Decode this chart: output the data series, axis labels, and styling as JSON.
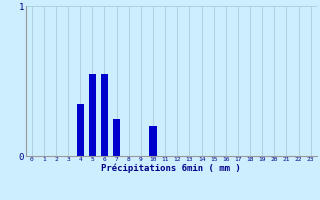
{
  "hours": [
    0,
    1,
    2,
    3,
    4,
    5,
    6,
    7,
    8,
    9,
    10,
    11,
    12,
    13,
    14,
    15,
    16,
    17,
    18,
    19,
    20,
    21,
    22,
    23
  ],
  "values": [
    0,
    0,
    0,
    0,
    0.35,
    0.55,
    0.55,
    0.25,
    0,
    0,
    0.2,
    0,
    0,
    0,
    0,
    0,
    0,
    0,
    0,
    0,
    0,
    0,
    0,
    0
  ],
  "bar_color": "#0000cc",
  "bg_color": "#cceeff",
  "plot_bg_color": "#cceeff",
  "grid_color": "#aad4dd",
  "xlabel": "Précipitations 6min ( mm )",
  "ylim": [
    0,
    1.0
  ],
  "yticks": [
    0,
    1
  ],
  "bar_width": 0.6
}
